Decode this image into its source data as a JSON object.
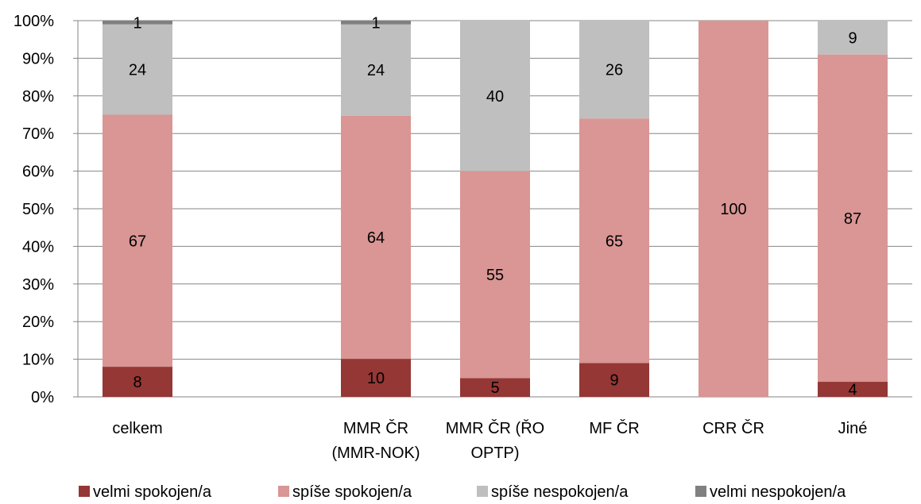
{
  "chart_data": {
    "type": "bar",
    "stacked": true,
    "percent_stacked": true,
    "categories": [
      [
        "celkem"
      ],
      [
        ""
      ],
      [
        "MMR ČR",
        "(MMR-NOK)"
      ],
      [
        "MMR ČR (ŘO",
        "OPTP)"
      ],
      [
        "MF ČR"
      ],
      [
        "CRR ČR"
      ],
      [
        "Jiné"
      ]
    ],
    "series": [
      {
        "name": "velmi spokojen/a",
        "color": "#953735",
        "values": [
          8,
          null,
          10,
          5,
          9,
          0,
          4
        ],
        "label_color": "#000000"
      },
      {
        "name": "spíše spokojen/a",
        "color": "#D99694",
        "values": [
          67,
          null,
          64,
          55,
          65,
          100,
          87
        ],
        "label_color": "#000000"
      },
      {
        "name": "spíše nespokojen/a",
        "color": "#BFBFBF",
        "values": [
          24,
          null,
          24,
          40,
          26,
          0,
          9
        ],
        "label_color": "#000000"
      },
      {
        "name": "velmi nespokojen/a",
        "color": "#808080",
        "values": [
          1,
          null,
          1,
          0,
          0,
          0,
          0
        ],
        "label_color": "#000000"
      }
    ],
    "ylim": [
      0,
      100
    ],
    "yticks": [
      "0%",
      "10%",
      "20%",
      "30%",
      "40%",
      "50%",
      "60%",
      "70%",
      "80%",
      "90%",
      "100%"
    ],
    "grid": true,
    "legend_position": "bottom",
    "title": "",
    "xlabel": "",
    "ylabel": ""
  }
}
